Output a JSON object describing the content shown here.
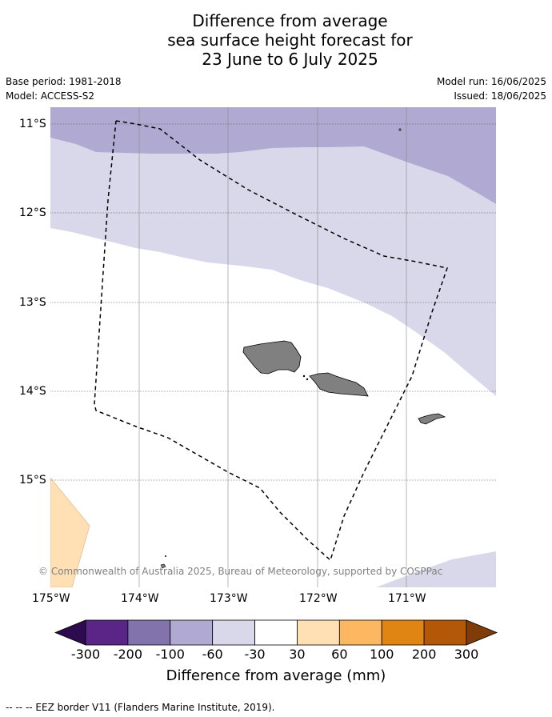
{
  "title_lines": [
    "Difference from average",
    "sea surface height forecast for",
    "23 June to 6 July 2025"
  ],
  "base_period": "Base period: 1981-2018",
  "model": "Model: ACCESS-S2",
  "model_run": "Model run: 16/06/2025",
  "issued": "Issued: 18/06/2025",
  "copyright": "© Commonwealth of Australia 2025, Bureau of Meteorology, supported by COSPPac",
  "lat_labels": [
    "11°S",
    "12°S",
    "13°S",
    "14°S",
    "15°S"
  ],
  "lon_labels": [
    "175°W",
    "174°W",
    "173°W",
    "172°W",
    "171°W"
  ],
  "colorbar": {
    "title": "Difference from average (mm)",
    "ticks": [
      "-300",
      "-200",
      "-100",
      "-60",
      "-30",
      "30",
      "60",
      "100",
      "200",
      "300"
    ],
    "colors": [
      "#2d0b4e",
      "#5a2586",
      "#8273ad",
      "#b0a9d1",
      "#d8d8ea",
      "#ffffff",
      "#ffe0b5",
      "#fdb760",
      "#e08414",
      "#b35806",
      "#7f3b08"
    ]
  },
  "footer": "--  --  -- EEZ border V11 (Flanders Marine Institute, 2019)."
}
